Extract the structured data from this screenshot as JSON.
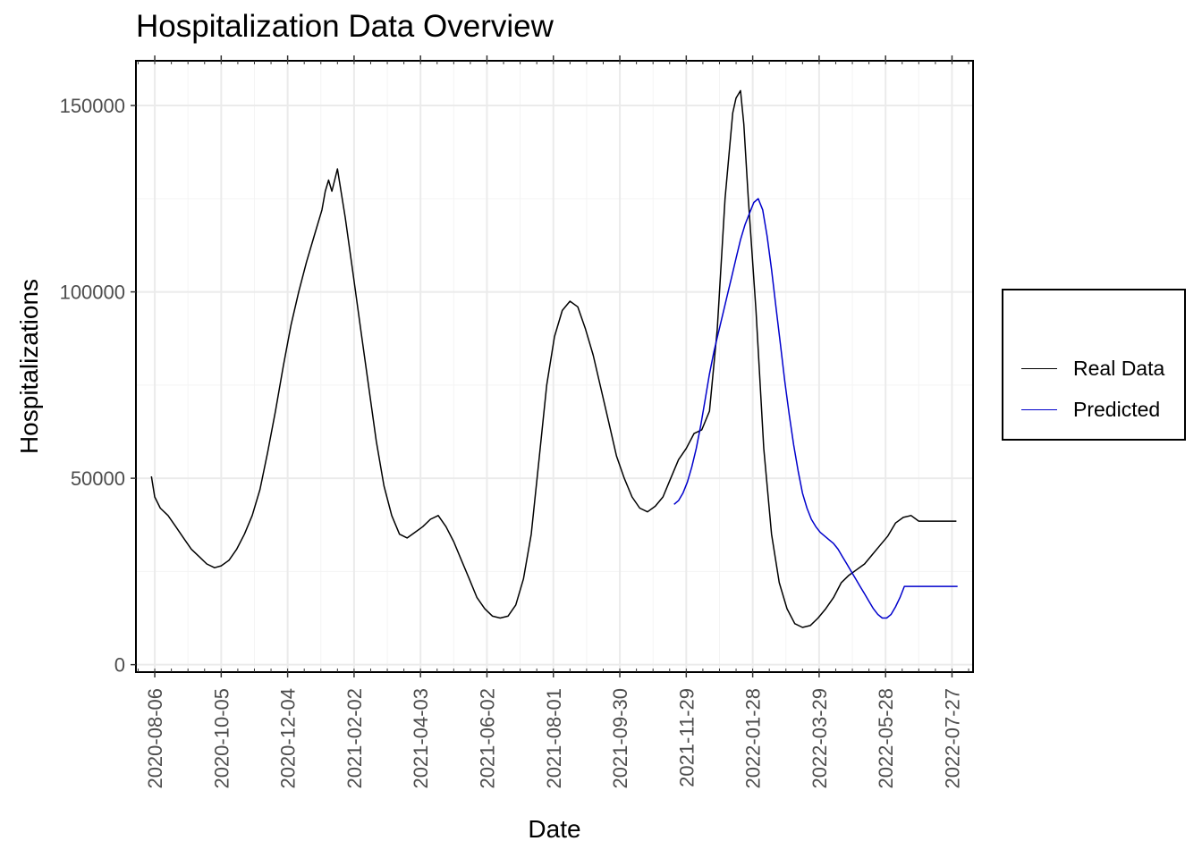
{
  "chart_data": {
    "type": "line",
    "title": "Hospitalization Data Overview",
    "xlabel": "Date",
    "ylabel": "Hospitalizations",
    "x_ticks": [
      "2020-08-06",
      "2020-10-05",
      "2020-12-04",
      "2021-02-02",
      "2021-04-03",
      "2021-06-02",
      "2021-08-01",
      "2021-09-30",
      "2021-11-29",
      "2022-01-28",
      "2022-03-29",
      "2022-05-28",
      "2022-07-27"
    ],
    "y_ticks": [
      0,
      50000,
      100000,
      150000
    ],
    "xlim": [
      "2020-07-20",
      "2022-08-15"
    ],
    "ylim": [
      -2000,
      162000
    ],
    "grid": true,
    "legend_position": "right",
    "series": [
      {
        "name": "Real Data",
        "color": "#000000",
        "x": [
          "2020-08-03",
          "2020-08-06",
          "2020-08-11",
          "2020-08-18",
          "2020-08-25",
          "2020-09-01",
          "2020-09-08",
          "2020-09-15",
          "2020-09-22",
          "2020-09-29",
          "2020-10-05",
          "2020-10-12",
          "2020-10-19",
          "2020-10-26",
          "2020-11-02",
          "2020-11-09",
          "2020-11-16",
          "2020-11-23",
          "2020-11-30",
          "2020-12-07",
          "2020-12-14",
          "2020-12-21",
          "2020-12-28",
          "2021-01-04",
          "2021-01-07",
          "2021-01-10",
          "2021-01-13",
          "2021-01-18",
          "2021-01-25",
          "2021-02-01",
          "2021-02-08",
          "2021-02-15",
          "2021-02-22",
          "2021-03-01",
          "2021-03-08",
          "2021-03-15",
          "2021-03-22",
          "2021-03-29",
          "2021-04-05",
          "2021-04-12",
          "2021-04-19",
          "2021-04-26",
          "2021-05-03",
          "2021-05-10",
          "2021-05-17",
          "2021-05-24",
          "2021-05-31",
          "2021-06-07",
          "2021-06-14",
          "2021-06-21",
          "2021-06-28",
          "2021-07-05",
          "2021-07-12",
          "2021-07-19",
          "2021-07-26",
          "2021-08-02",
          "2021-08-09",
          "2021-08-16",
          "2021-08-23",
          "2021-08-30",
          "2021-09-06",
          "2021-09-13",
          "2021-09-20",
          "2021-09-27",
          "2021-10-04",
          "2021-10-11",
          "2021-10-18",
          "2021-10-25",
          "2021-11-01",
          "2021-11-08",
          "2021-11-15",
          "2021-11-22",
          "2021-11-29",
          "2021-12-06",
          "2021-12-13",
          "2021-12-20",
          "2021-12-27",
          "2022-01-03",
          "2022-01-10",
          "2022-01-13",
          "2022-01-17",
          "2022-01-20",
          "2022-01-24",
          "2022-01-31",
          "2022-02-07",
          "2022-02-14",
          "2022-02-21",
          "2022-02-28",
          "2022-03-07",
          "2022-03-14",
          "2022-03-21",
          "2022-03-28",
          "2022-04-04",
          "2022-04-11",
          "2022-04-18",
          "2022-04-25",
          "2022-05-02",
          "2022-05-09",
          "2022-05-16",
          "2022-05-23",
          "2022-05-30",
          "2022-06-06",
          "2022-06-13",
          "2022-06-20",
          "2022-06-27",
          "2022-07-04",
          "2022-07-11",
          "2022-07-18",
          "2022-07-25",
          "2022-07-31"
        ],
        "y": [
          50500,
          45000,
          42000,
          40000,
          37000,
          34000,
          31000,
          29000,
          27000,
          26000,
          26500,
          28000,
          31000,
          35000,
          40000,
          47000,
          57000,
          68000,
          80000,
          91000,
          100000,
          108000,
          115000,
          122000,
          127000,
          130000,
          127000,
          133000,
          120000,
          105000,
          90000,
          75000,
          60000,
          48000,
          40000,
          35000,
          34000,
          35500,
          37000,
          39000,
          40000,
          37000,
          33000,
          28000,
          23000,
          18000,
          15000,
          13000,
          12500,
          13000,
          16000,
          23000,
          35000,
          55000,
          75000,
          88000,
          95000,
          97500,
          96000,
          90000,
          83000,
          74000,
          65000,
          56000,
          50000,
          45000,
          42000,
          41000,
          42500,
          45000,
          50000,
          55000,
          58000,
          62000,
          63000,
          68000,
          90000,
          125000,
          148000,
          152000,
          154000,
          145000,
          125000,
          95000,
          58000,
          35000,
          22000,
          15000,
          11000,
          10000,
          10500,
          12500,
          15000,
          18000,
          22000,
          24000,
          25500,
          27000,
          29500,
          32000,
          34500,
          38000,
          39500,
          40000,
          38500,
          38500,
          38500,
          38500,
          38500,
          38500
        ]
      },
      {
        "name": "Predicted",
        "color": "#0000cc",
        "x": [
          "2021-11-18",
          "2021-11-22",
          "2021-11-26",
          "2021-11-30",
          "2021-12-04",
          "2021-12-08",
          "2021-12-12",
          "2021-12-16",
          "2021-12-20",
          "2021-12-24",
          "2021-12-28",
          "2022-01-01",
          "2022-01-05",
          "2022-01-09",
          "2022-01-13",
          "2022-01-17",
          "2022-01-21",
          "2022-01-25",
          "2022-01-29",
          "2022-02-02",
          "2022-02-06",
          "2022-02-10",
          "2022-02-14",
          "2022-02-18",
          "2022-02-22",
          "2022-02-26",
          "2022-03-02",
          "2022-03-06",
          "2022-03-10",
          "2022-03-14",
          "2022-03-18",
          "2022-03-22",
          "2022-03-26",
          "2022-03-30",
          "2022-04-03",
          "2022-04-07",
          "2022-04-11",
          "2022-04-15",
          "2022-04-19",
          "2022-04-23",
          "2022-04-27",
          "2022-05-01",
          "2022-05-05",
          "2022-05-09",
          "2022-05-13",
          "2022-05-17",
          "2022-05-21",
          "2022-05-25",
          "2022-05-29",
          "2022-06-02",
          "2022-06-06",
          "2022-06-10",
          "2022-06-14",
          "2022-06-18",
          "2022-06-22",
          "2022-06-26",
          "2022-06-30",
          "2022-07-04",
          "2022-07-08",
          "2022-07-12",
          "2022-07-16",
          "2022-07-20",
          "2022-07-24",
          "2022-07-28",
          "2022-08-01"
        ],
        "y": [
          43000,
          44000,
          46000,
          49000,
          53000,
          58000,
          64000,
          71000,
          78000,
          84000,
          89000,
          94000,
          99000,
          104000,
          109000,
          114000,
          118000,
          121000,
          124000,
          125000,
          122000,
          115000,
          106000,
          96000,
          86000,
          76000,
          67000,
          59000,
          52000,
          46000,
          42000,
          39000,
          37000,
          35500,
          34500,
          33500,
          32500,
          31000,
          29000,
          27000,
          25000,
          23000,
          21000,
          19000,
          17000,
          15000,
          13500,
          12500,
          12500,
          13500,
          15500,
          18000,
          21000,
          21000,
          21000,
          21000,
          21000,
          21000,
          21000,
          21000,
          21000,
          21000,
          21000,
          21000,
          21000
        ]
      }
    ]
  }
}
